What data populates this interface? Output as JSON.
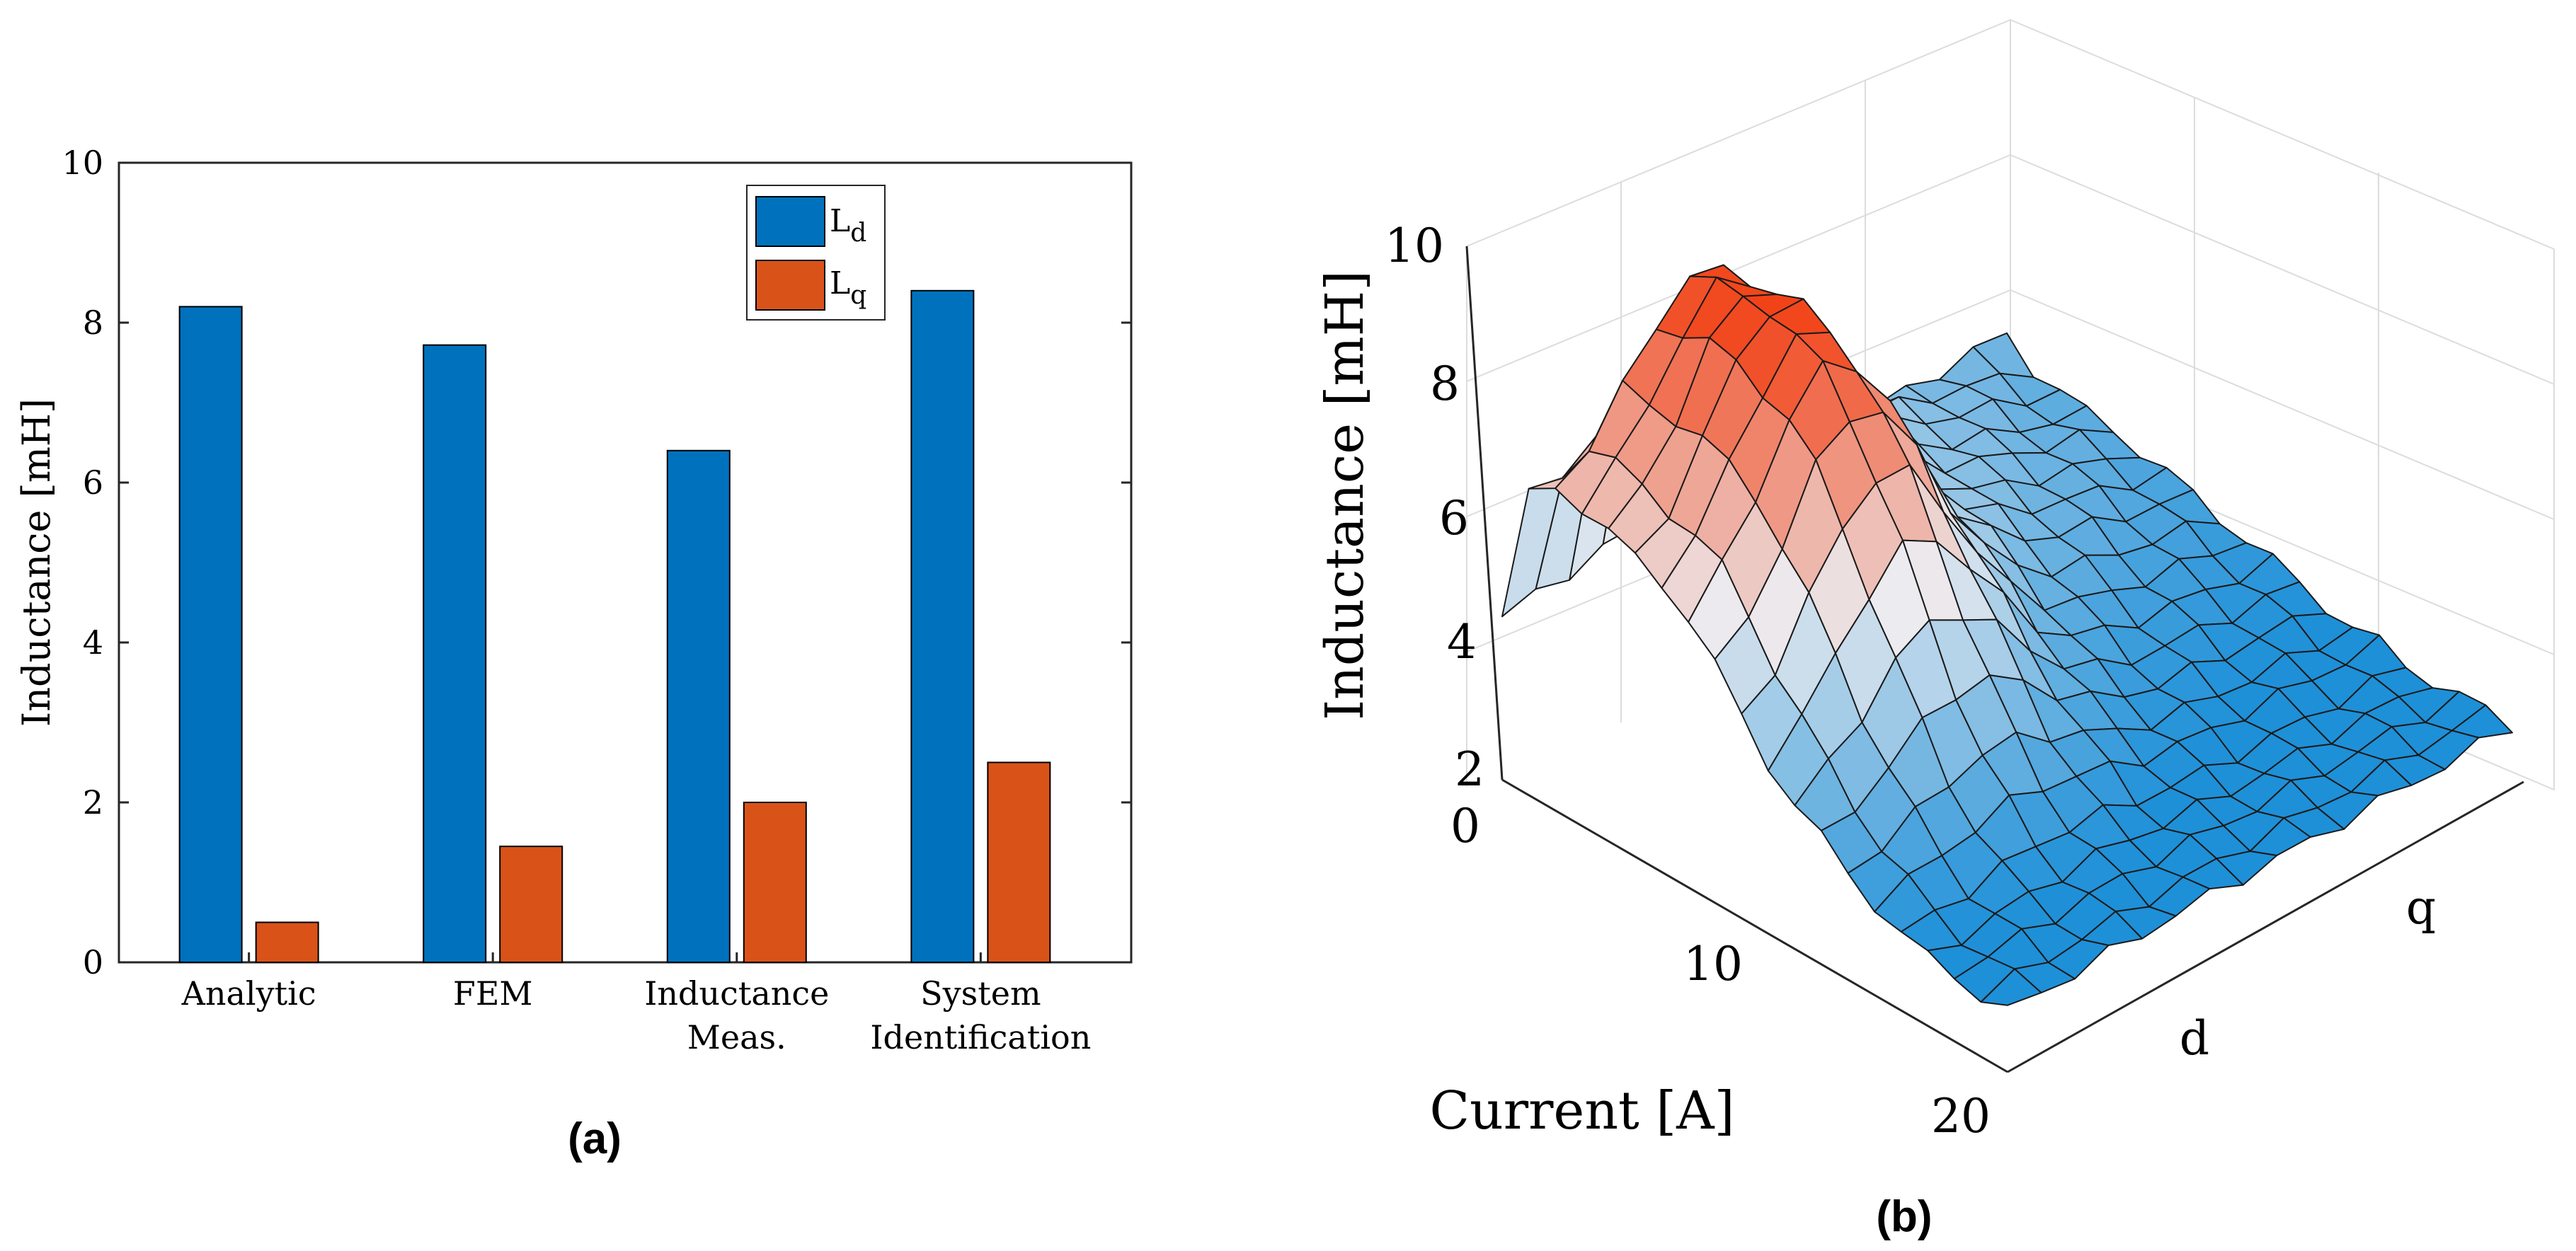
{
  "chart_data": [
    {
      "type": "bar",
      "panel_label": "(a)",
      "categories": [
        {
          "line1": "Analytic",
          "line2": ""
        },
        {
          "line1": "FEM",
          "line2": ""
        },
        {
          "line1": "Inductance",
          "line2": "Meas."
        },
        {
          "line1": "System",
          "line2": "Identification"
        }
      ],
      "series": [
        {
          "name": "L",
          "subscript": "d",
          "color": "#0072BD",
          "values": [
            8.2,
            7.72,
            6.4,
            8.4
          ]
        },
        {
          "name": "L",
          "subscript": "q",
          "color": "#D95319",
          "values": [
            0.5,
            1.45,
            2.0,
            2.5
          ]
        }
      ],
      "ylabel": "Inductance [mH]",
      "ylim": [
        0,
        10
      ],
      "yticks": [
        "0",
        "2",
        "4",
        "6",
        "8",
        "10"
      ],
      "legend": "top-right",
      "grid": false
    },
    {
      "type": "surface",
      "panel_label": "(b)",
      "zlabel": "Inductance [mH]",
      "xlabel": "Current [A]",
      "zlim": [
        2,
        10
      ],
      "zticks": [
        "2",
        "4",
        "6",
        "8",
        "10"
      ],
      "xticks": [
        "0",
        "10",
        "20"
      ],
      "yticks": [
        "d",
        "q"
      ],
      "color_high": "#F23A0C",
      "color_low": "#1E90D8",
      "d_axis_curve": [
        4.4,
        6.3,
        6.5,
        6.4,
        6.2,
        6.0,
        5.9,
        5.6,
        5.1,
        4.6,
        4.2,
        3.9,
        3.7,
        3.5,
        3.3,
        3.1,
        3.0,
        3.0,
        2.9,
        2.9
      ],
      "q_axis_curve": [
        4.3,
        4.0,
        3.9,
        3.8,
        3.8,
        3.7,
        3.6,
        3.5,
        3.4,
        3.3,
        3.2,
        3.1,
        3.0,
        2.9,
        2.9,
        2.8,
        2.8,
        2.8,
        2.8,
        2.8
      ],
      "peak_curve": [
        4.6,
        7.3,
        8.8,
        8.9,
        9.0,
        9.0,
        8.8,
        8.6,
        8.1,
        7.4,
        6.6,
        5.7,
        4.9,
        4.2,
        3.7,
        3.3,
        3.1,
        3.0,
        2.9,
        2.9
      ]
    }
  ]
}
